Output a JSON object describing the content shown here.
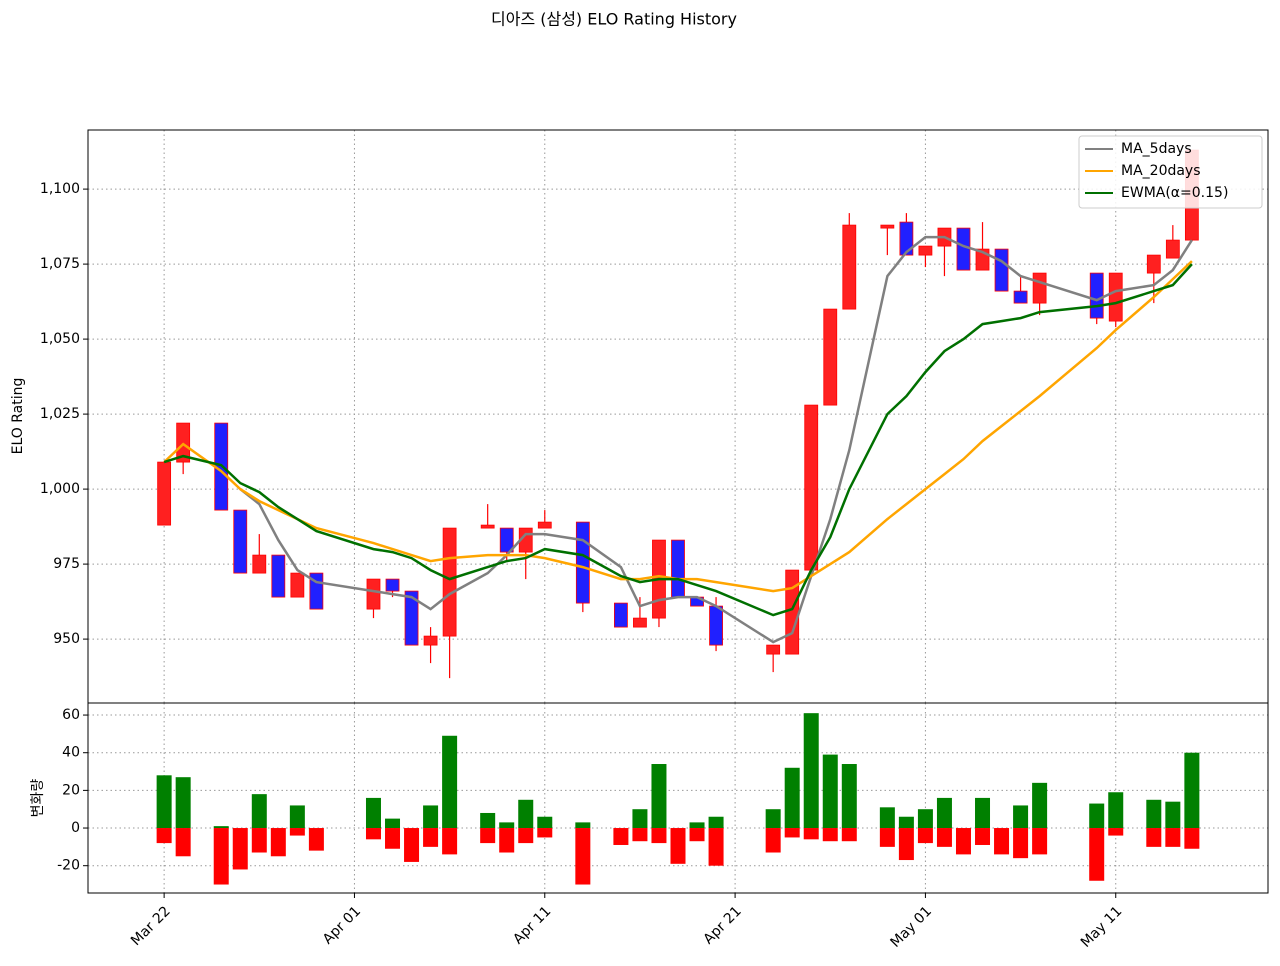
{
  "chart_data": [
    {
      "type": "candlestick",
      "title": "디아즈 (삼성) ELO Rating History",
      "ylabel": "ELO Rating",
      "x": [
        "Mar 22",
        "Mar 23",
        "Mar 25",
        "Mar 26",
        "Mar 27",
        "Mar 28",
        "Mar 29",
        "Mar 30",
        "Apr 02",
        "Apr 03",
        "Apr 04",
        "Apr 05",
        "Apr 06",
        "Apr 08",
        "Apr 09",
        "Apr 10",
        "Apr 11",
        "Apr 13",
        "Apr 15",
        "Apr 16",
        "Apr 17",
        "Apr 18",
        "Apr 19",
        "Apr 20",
        "Apr 23",
        "Apr 24",
        "Apr 25",
        "Apr 26",
        "Apr 27",
        "Apr 29",
        "Apr 30",
        "May 01",
        "May 02",
        "May 03",
        "May 04",
        "May 05",
        "May 06",
        "May 07",
        "May 10",
        "May 11",
        "May 13",
        "May 14",
        "May 15"
      ],
      "open": [
        988,
        1009,
        1022,
        993,
        972,
        978,
        964,
        972,
        960,
        970,
        966,
        948,
        951,
        987,
        987,
        979,
        987,
        989,
        962,
        954,
        957,
        983,
        964,
        961,
        945,
        945,
        973,
        1028,
        1060,
        1087,
        1089,
        1078,
        1081,
        1087,
        1073,
        1080,
        1066,
        1062,
        1072,
        1056,
        1072,
        1077,
        1083
      ],
      "high": [
        1009,
        1022,
        1022,
        993,
        985,
        978,
        972,
        972,
        970,
        970,
        966,
        954,
        987,
        995,
        987,
        987,
        993,
        989,
        962,
        964,
        983,
        983,
        964,
        964,
        948,
        973,
        1028,
        1060,
        1092,
        1088,
        1092,
        1081,
        1087,
        1087,
        1089,
        1080,
        1071,
        1072,
        1072,
        1072,
        1078,
        1088,
        1113
      ],
      "low": [
        988,
        1005,
        993,
        972,
        972,
        964,
        964,
        960,
        957,
        964,
        948,
        942,
        937,
        987,
        976,
        970,
        987,
        959,
        954,
        954,
        954,
        964,
        961,
        946,
        939,
        945,
        973,
        1028,
        1060,
        1078,
        1078,
        1074,
        1071,
        1073,
        1073,
        1066,
        1062,
        1058,
        1055,
        1054,
        1062,
        1077,
        1083
      ],
      "close": [
        1009,
        1022,
        993,
        972,
        978,
        964,
        972,
        960,
        970,
        966,
        948,
        951,
        987,
        988,
        979,
        987,
        989,
        962,
        954,
        957,
        983,
        964,
        961,
        948,
        948,
        973,
        1028,
        1060,
        1088,
        1088,
        1078,
        1081,
        1087,
        1073,
        1080,
        1066,
        1062,
        1072,
        1057,
        1072,
        1078,
        1083,
        1113
      ],
      "up_color": "#ff2020",
      "down_color": "#2020ff",
      "edge_color": "#ff0000",
      "series": [
        {
          "name": "MA_5days",
          "color": "#808080",
          "values": [
            null,
            null,
            null,
            1000,
            995,
            983,
            973,
            969,
            966,
            965,
            964,
            960,
            965,
            972,
            978,
            985,
            985,
            983,
            974,
            961,
            963,
            964,
            964,
            961,
            949,
            952,
            971,
            990,
            1013,
            1071,
            1079,
            1084,
            1084,
            1081,
            1079,
            1076,
            1071,
            1069,
            1063,
            1066,
            1068,
            1073,
            1083
          ]
        },
        {
          "name": "MA_20days",
          "color": "#ffa500",
          "values": [
            1009,
            1015,
            1006,
            1000,
            996,
            993,
            990,
            987,
            982,
            980,
            978,
            976,
            977,
            978,
            978,
            978,
            977,
            974,
            970,
            970,
            971,
            970,
            970,
            969,
            966,
            967,
            971,
            975,
            979,
            990,
            995,
            1000,
            1005,
            1010,
            1016,
            1021,
            1026,
            1031,
            1047,
            1053,
            1064,
            1070,
            1076
          ]
        },
        {
          "name": "EWMA(α=0.15)",
          "color": "#007000",
          "values": [
            1009,
            1011,
            1008,
            1002,
            999,
            994,
            990,
            986,
            980,
            979,
            977,
            973,
            970,
            974,
            976,
            977,
            980,
            978,
            971,
            969,
            970,
            970,
            968,
            966,
            958,
            960,
            973,
            984,
            1000,
            1025,
            1031,
            1039,
            1046,
            1050,
            1055,
            1056,
            1057,
            1059,
            1061,
            1062,
            1066,
            1068,
            1075
          ]
        }
      ],
      "xlim": [
        "Mar 18",
        "May 19"
      ],
      "ylim": [
        928.7,
        1119.7
      ],
      "yticks": [
        950,
        975,
        {
          "value": 1000,
          "label": "1,000"
        },
        {
          "value": 1025,
          "label": "1,025"
        },
        {
          "value": 1050,
          "label": "1,050"
        },
        {
          "value": 1075,
          "label": "1,075"
        },
        {
          "value": 1100,
          "label": "1,100"
        }
      ],
      "grid": true,
      "legend": "upper right"
    },
    {
      "type": "bar",
      "ylabel": "변화량",
      "x": [
        "Mar 22",
        "Mar 23",
        "Mar 25",
        "Mar 26",
        "Mar 27",
        "Mar 28",
        "Mar 29",
        "Mar 30",
        "Apr 02",
        "Apr 03",
        "Apr 04",
        "Apr 05",
        "Apr 06",
        "Apr 08",
        "Apr 09",
        "Apr 10",
        "Apr 11",
        "Apr 13",
        "Apr 15",
        "Apr 16",
        "Apr 17",
        "Apr 18",
        "Apr 19",
        "Apr 20",
        "Apr 23",
        "Apr 24",
        "Apr 25",
        "Apr 26",
        "Apr 27",
        "Apr 29",
        "Apr 30",
        "May 01",
        "May 02",
        "May 03",
        "May 04",
        "May 05",
        "May 06",
        "May 07",
        "May 10",
        "May 11",
        "May 13",
        "May 14",
        "May 15"
      ],
      "series": [
        {
          "color": "#008000",
          "values": [
            28,
            27,
            1,
            0,
            18,
            0,
            12,
            0,
            16,
            5,
            0,
            12,
            49,
            8,
            3,
            15,
            6,
            3,
            0,
            10,
            34,
            0,
            3,
            6,
            10,
            32,
            61,
            39,
            34,
            11,
            6,
            10,
            16,
            0,
            16,
            0,
            12,
            24,
            13,
            19,
            15,
            14,
            40
          ]
        },
        {
          "color": "#ff0000",
          "values": [
            -8,
            -15,
            -30,
            -22,
            -13,
            -15,
            -4,
            -12,
            -6,
            -11,
            -18,
            -10,
            -14,
            -8,
            -13,
            -8,
            -5,
            -30,
            -9,
            -7,
            -8,
            -19,
            -7,
            -20,
            -13,
            -5,
            -6,
            -7,
            -7,
            -10,
            -17,
            -8,
            -10,
            -14,
            -9,
            -14,
            -16,
            -14,
            -28,
            -4,
            -10,
            -10,
            -11
          ]
        }
      ],
      "xlim": [
        "Mar 18",
        "May 19"
      ],
      "xticks": [
        "Mar 22",
        "Apr 01",
        "Apr 11",
        "Apr 21",
        "May 01",
        "May 11"
      ],
      "ylim": [
        -34.5,
        66.4
      ],
      "yticks": [
        -20,
        0,
        20,
        40,
        60
      ],
      "grid": true
    }
  ]
}
